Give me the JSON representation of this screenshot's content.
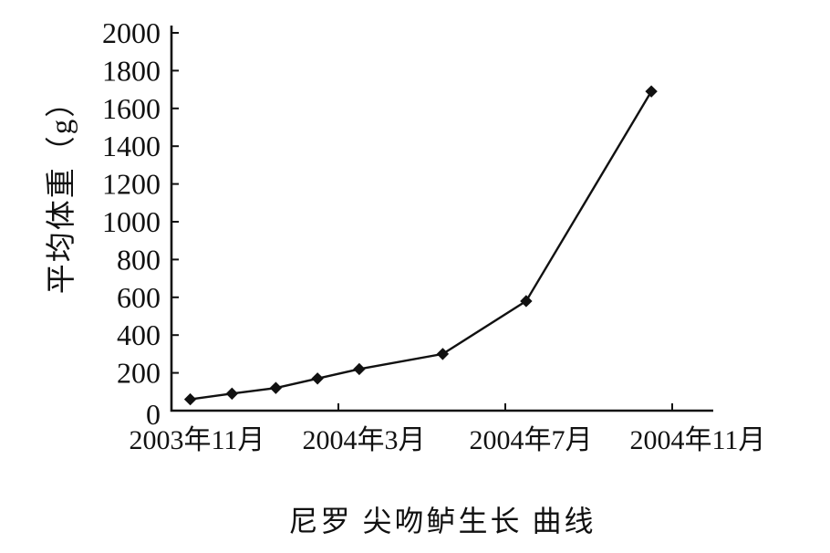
{
  "chart_data": {
    "type": "line",
    "title": "尼罗 尖吻鲈生长 曲线",
    "ylabel": "平均体重（g）",
    "xlabel": "",
    "x_tick_labels": [
      "2003年11月",
      "2004年3月",
      "2004年7月",
      "2004年11月"
    ],
    "x_tick_months": [
      0,
      4,
      8,
      12
    ],
    "y_ticks": [
      0,
      200,
      400,
      600,
      800,
      1000,
      1200,
      1400,
      1600,
      1800,
      2000
    ],
    "ylim": [
      0,
      2000
    ],
    "xlim_months": [
      0,
      13
    ],
    "grid": false,
    "legend": "none",
    "marker": "diamond",
    "line_color": "#111111",
    "background": "#ffffff",
    "series": [
      {
        "name": "平均体重",
        "x_months_after_2003_11": [
          0.45,
          1.45,
          2.5,
          3.5,
          4.5,
          6.5,
          8.5,
          11.5
        ],
        "values": [
          60,
          90,
          120,
          170,
          220,
          300,
          580,
          1690
        ]
      }
    ]
  }
}
